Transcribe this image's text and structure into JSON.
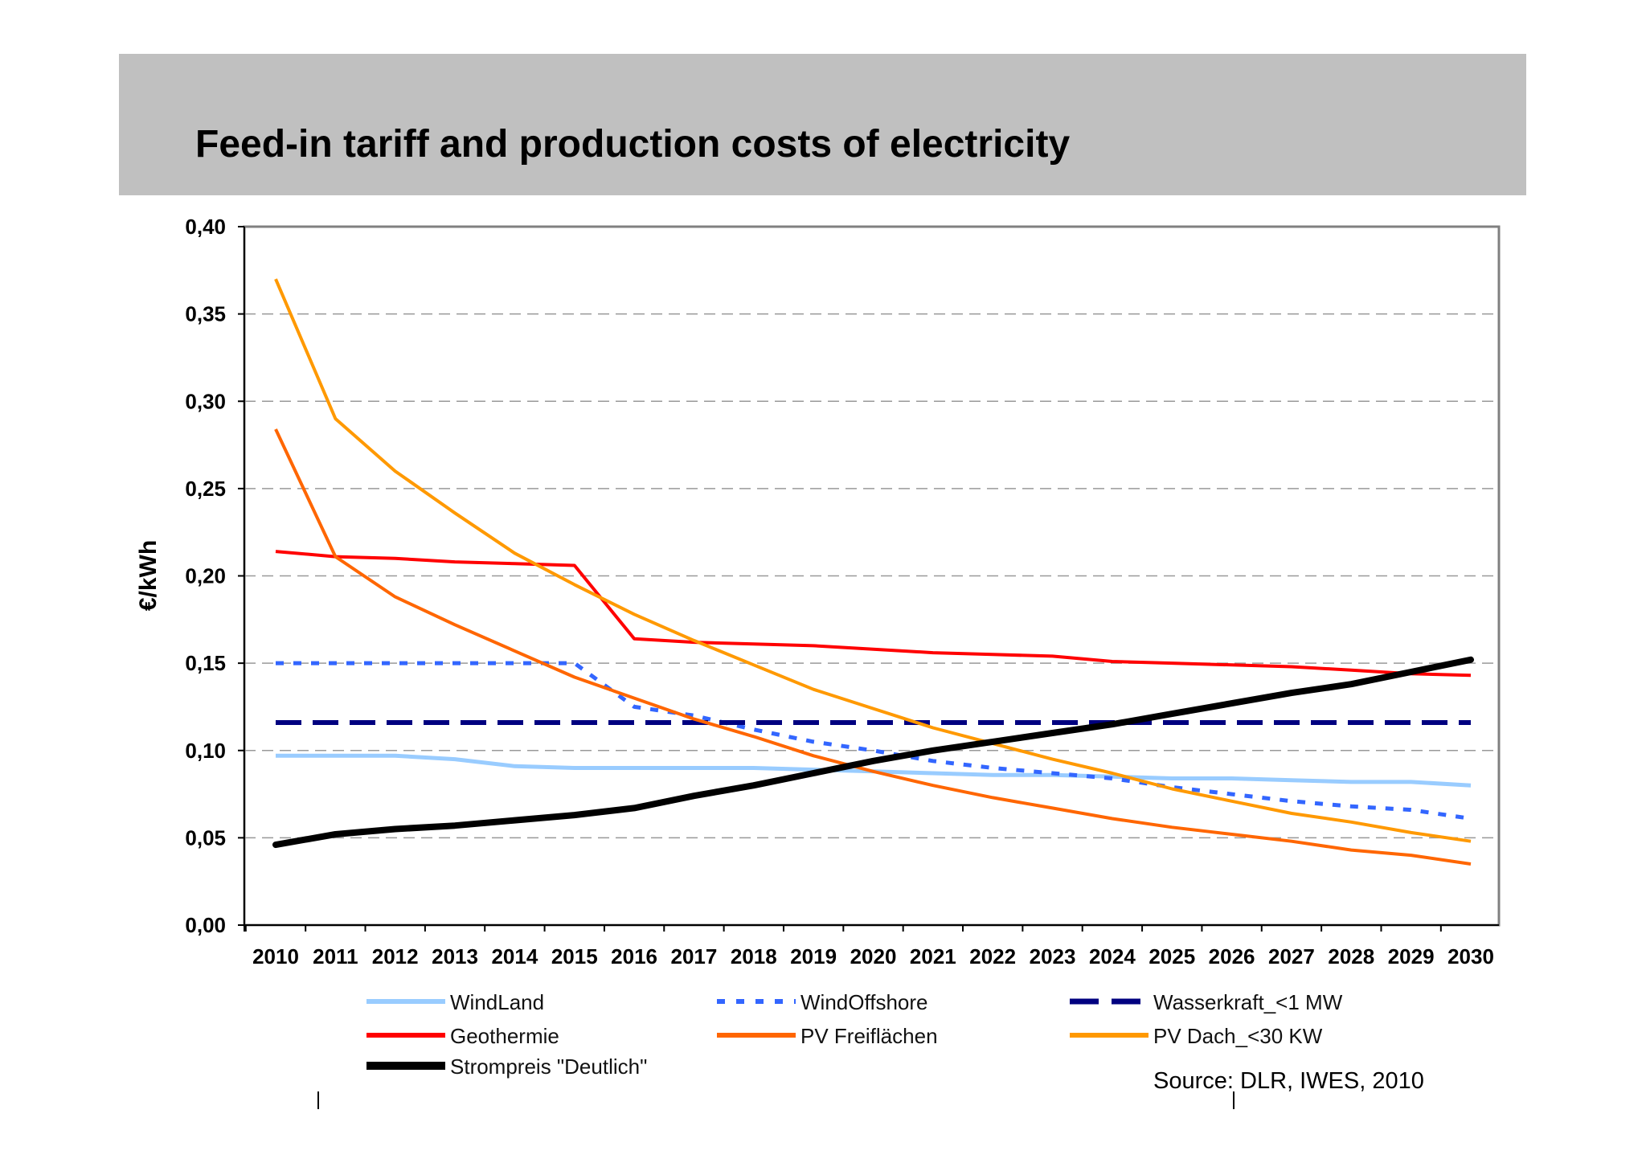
{
  "chart_data": {
    "type": "line",
    "title": "Feed-in tariff and production costs of electricity",
    "xlabel": "",
    "ylabel": "€/kWh",
    "ylim": [
      0,
      0.4
    ],
    "yticks": [
      "0,00",
      "0,05",
      "0,10",
      "0,15",
      "0,20",
      "0,25",
      "0,30",
      "0,35",
      "0,40"
    ],
    "grid": "horizontal dashed",
    "legend_position": "bottom",
    "x": [
      "2010",
      "2011",
      "2012",
      "2013",
      "2014",
      "2015",
      "2016",
      "2017",
      "2018",
      "2019",
      "2020",
      "2021",
      "2022",
      "2023",
      "2024",
      "2025",
      "2026",
      "2027",
      "2028",
      "2029",
      "2030"
    ],
    "series": [
      {
        "name": "WindLand",
        "color": "#99ccff",
        "style": "solid",
        "values": [
          0.097,
          0.097,
          0.097,
          0.095,
          0.091,
          0.09,
          0.09,
          0.09,
          0.09,
          0.089,
          0.088,
          0.087,
          0.086,
          0.086,
          0.085,
          0.084,
          0.084,
          0.083,
          0.082,
          0.082,
          0.08
        ]
      },
      {
        "name": "WindOffshore",
        "color": "#3366ff",
        "style": "dotted",
        "values": [
          0.15,
          0.15,
          0.15,
          0.15,
          0.15,
          0.15,
          0.125,
          0.12,
          0.112,
          0.105,
          0.1,
          0.094,
          0.09,
          0.087,
          0.084,
          0.079,
          0.075,
          0.071,
          0.068,
          0.066,
          0.061
        ]
      },
      {
        "name": "Wasserkraft_<1 MW",
        "color": "#000080",
        "style": "dashed",
        "values": [
          0.116,
          0.116,
          0.116,
          0.116,
          0.116,
          0.116,
          0.116,
          0.116,
          0.116,
          0.116,
          0.116,
          0.116,
          0.116,
          0.116,
          0.116,
          0.116,
          0.116,
          0.116,
          0.116,
          0.116,
          0.116
        ]
      },
      {
        "name": "Geothermie",
        "color": "#ff0000",
        "style": "solid",
        "values": [
          0.214,
          0.211,
          0.21,
          0.208,
          0.207,
          0.206,
          0.164,
          0.162,
          0.161,
          0.16,
          0.158,
          0.156,
          0.155,
          0.154,
          0.151,
          0.15,
          0.149,
          0.148,
          0.146,
          0.144,
          0.143
        ]
      },
      {
        "name": "PV Freiflächen",
        "color": "#ff6600",
        "style": "solid",
        "values": [
          0.284,
          0.211,
          0.188,
          0.172,
          0.157,
          0.142,
          0.13,
          0.118,
          0.108,
          0.097,
          0.088,
          0.08,
          0.073,
          0.067,
          0.061,
          0.056,
          0.052,
          0.048,
          0.043,
          0.04,
          0.035
        ]
      },
      {
        "name": "PV Dach_<30 KW",
        "color": "#ff9900",
        "style": "solid",
        "values": [
          0.37,
          0.29,
          0.26,
          0.236,
          0.213,
          0.195,
          0.178,
          0.163,
          0.149,
          0.135,
          0.124,
          0.113,
          0.104,
          0.095,
          0.087,
          0.078,
          0.071,
          0.064,
          0.059,
          0.053,
          0.048
        ]
      },
      {
        "name": "Strompreis \"Deutlich\"",
        "color": "#000000",
        "style": "thick",
        "values": [
          0.046,
          0.052,
          0.055,
          0.057,
          0.06,
          0.063,
          0.067,
          0.074,
          0.08,
          0.087,
          0.094,
          0.1,
          0.105,
          0.11,
          0.115,
          0.121,
          0.127,
          0.133,
          0.138,
          0.145,
          0.152
        ]
      }
    ],
    "source": "Source: DLR, IWES, 2010"
  },
  "header": {
    "background": "#c0c0c0"
  }
}
